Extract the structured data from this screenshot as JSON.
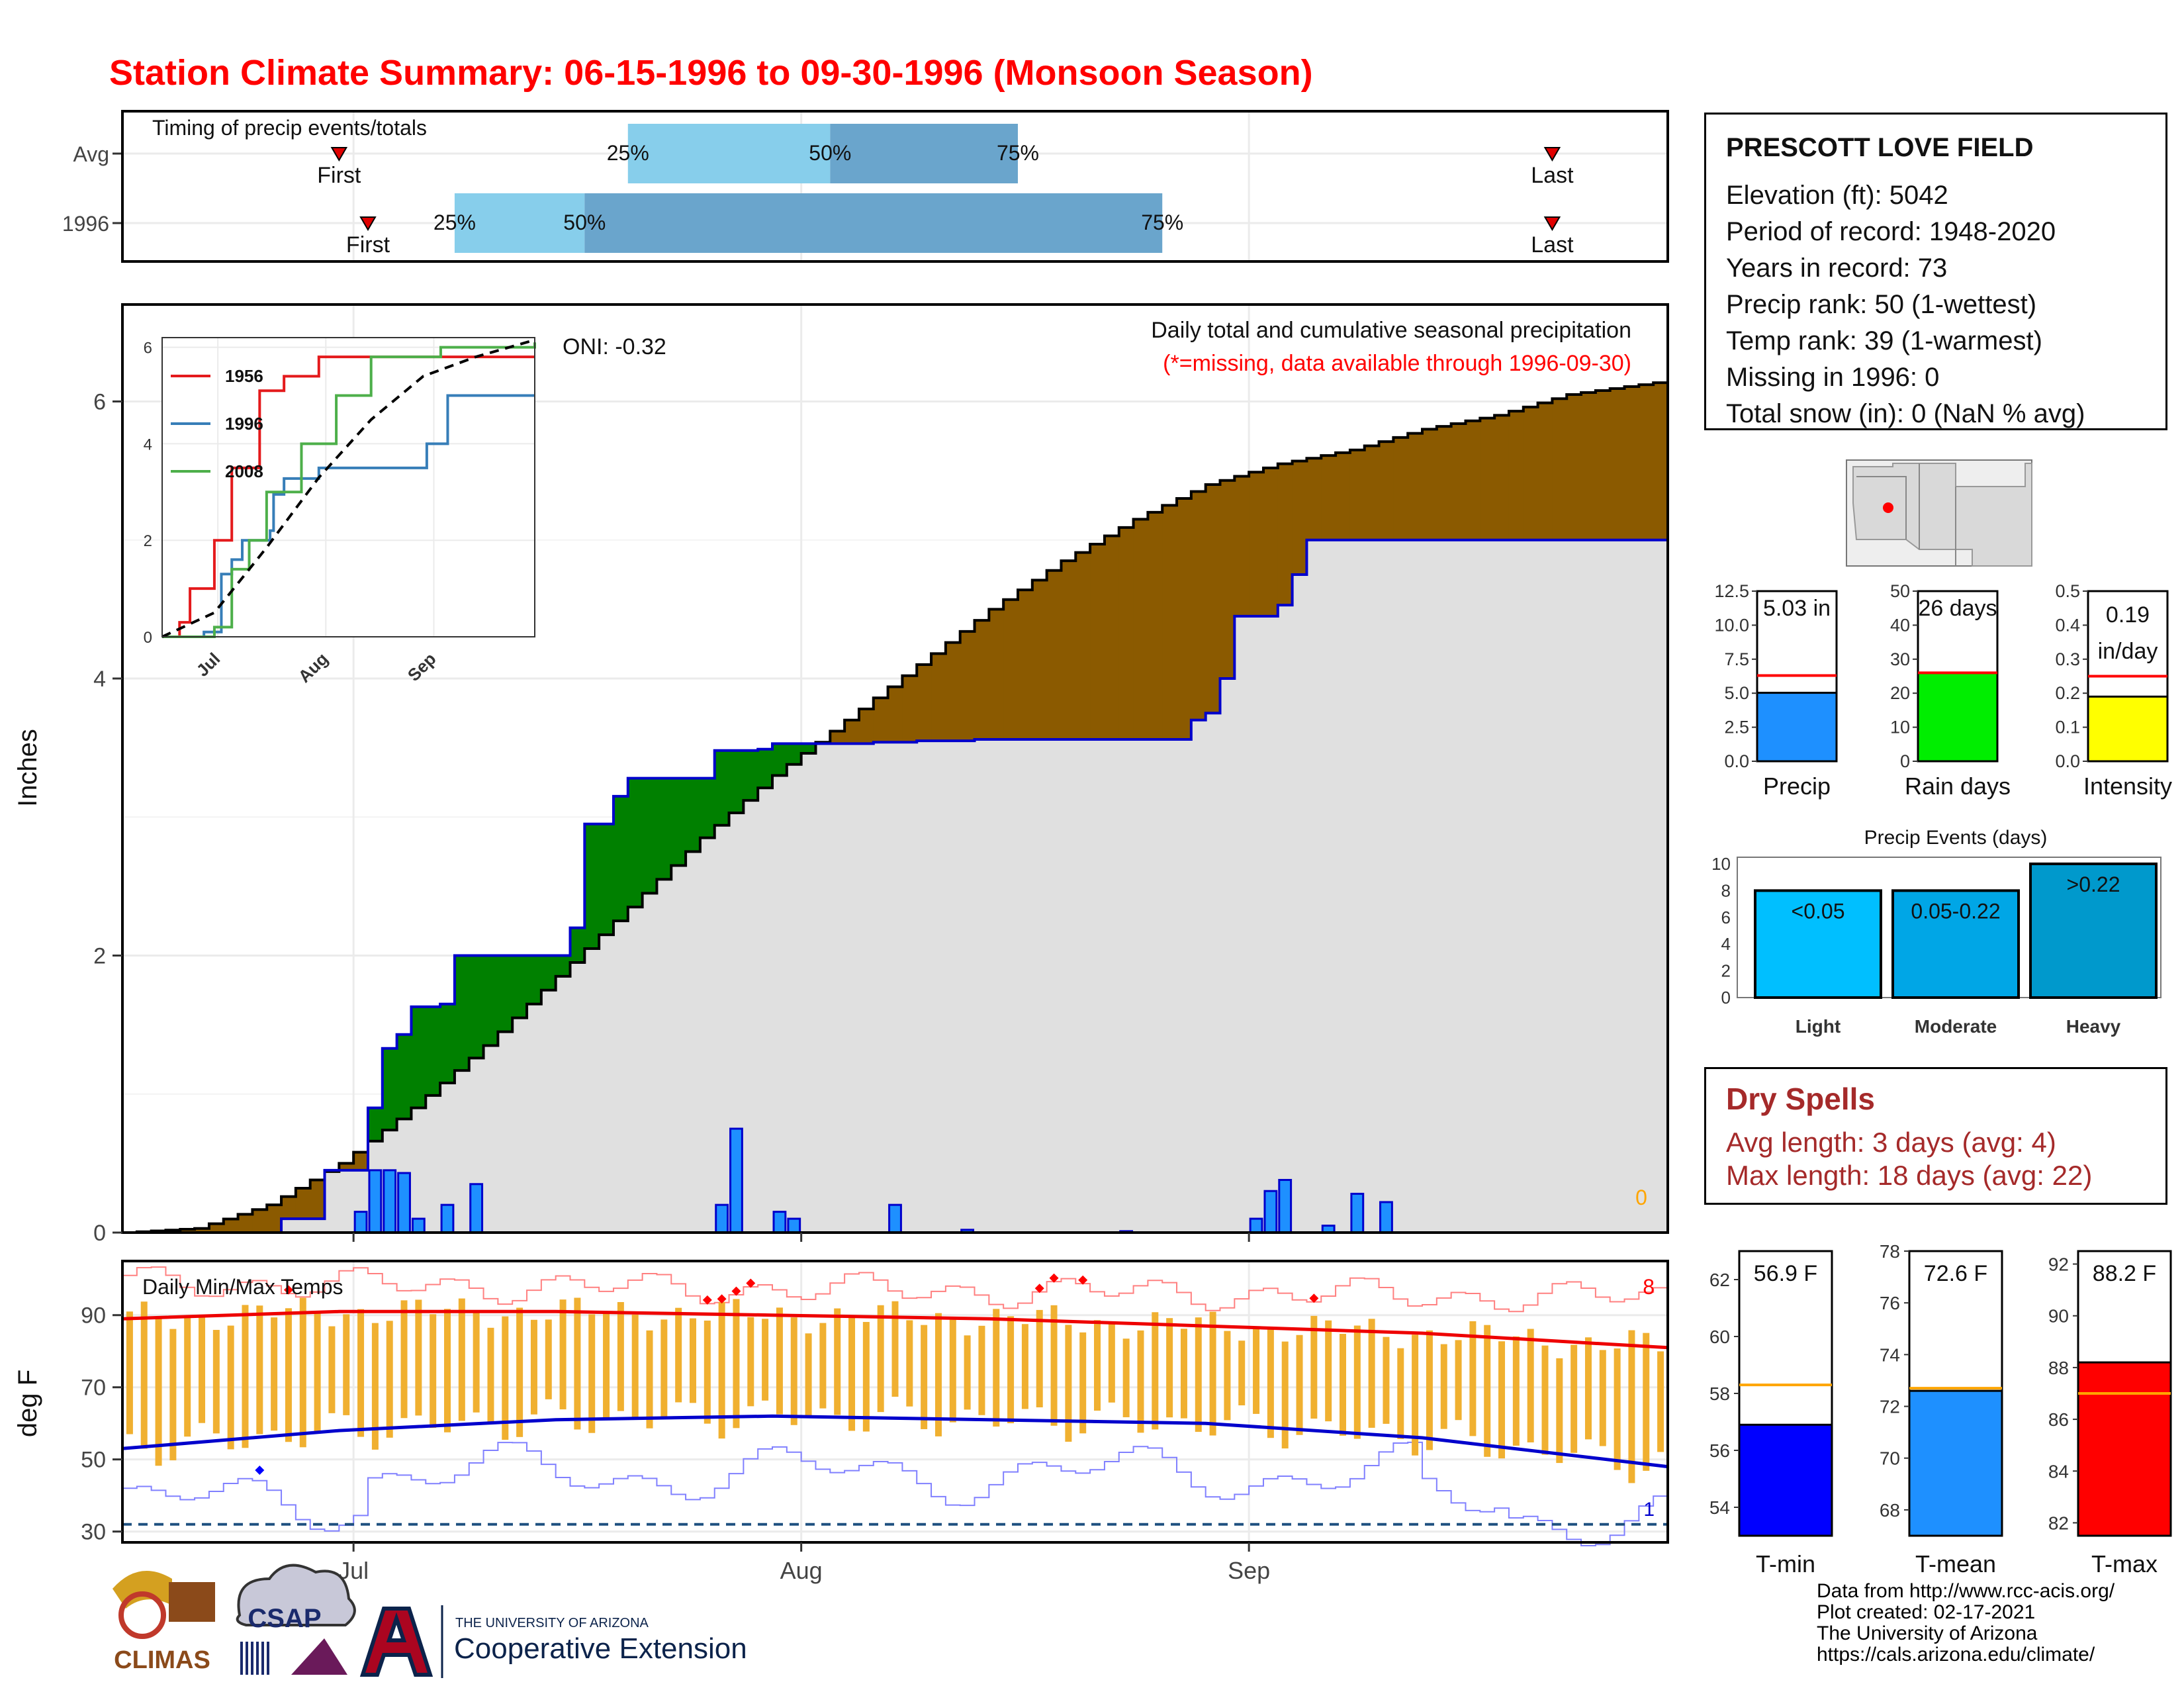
{
  "title": "Station Climate Summary: 06-15-1996 to 09-30-1996 (Monsoon Season)",
  "timing": {
    "label": "Timing of precip events/totals",
    "rows": [
      {
        "name": "Avg",
        "first_label": "First",
        "last_label": "Last",
        "first": "06-30",
        "p25": "07-20",
        "p50": "08-03",
        "p75": "08-16",
        "last": "09-22"
      },
      {
        "name": "1996",
        "first_label": "First",
        "last_label": "Last",
        "first": "07-02",
        "p25": "07-08",
        "p50": "07-17",
        "p75": "08-26",
        "last": "09-22"
      }
    ],
    "pct_labels": [
      "25%",
      "50%",
      "75%"
    ]
  },
  "station": {
    "name": "PRESCOTT LOVE FIELD",
    "lines": [
      "Elevation (ft): 5042",
      "Period of record: 1948-2020",
      "Years in record: 73",
      "Precip rank: 50 (1-wettest)",
      "Temp rank: 39 (1-warmest)",
      "Missing in 1996: 0",
      "Total snow (in): 0 (NaN % avg)"
    ]
  },
  "precip_panel": {
    "ylabel": "Inches",
    "oni": "ONI: -0.32",
    "caption": "Daily total and cumulative seasonal precipitation",
    "missing_note": "(*=missing, data available through 1996-09-30)",
    "missing_count": "0",
    "x_ticks": [
      "Jul",
      "Aug",
      "Sep"
    ],
    "y_ticks": [
      "0",
      "2",
      "4",
      "6"
    ],
    "colors": {
      "above": "#008000",
      "below": "#8b5a00",
      "bars": "#1e90ff",
      "observed": "#0000cc",
      "fill": "#e0e0e0"
    }
  },
  "inset": {
    "legend": [
      {
        "name": "1956",
        "color": "#e41a1c"
      },
      {
        "name": "1996",
        "color": "#377eb8"
      },
      {
        "name": "2008",
        "color": "#4daf4a"
      }
    ],
    "x_ticks": [
      "Jul",
      "Aug",
      "Sep"
    ],
    "y_ticks": [
      "0",
      "2",
      "4",
      "6"
    ]
  },
  "gauges": [
    {
      "label": "Precip",
      "value_text": "5.03 in",
      "value": 5.03,
      "avg": 6.3,
      "max": 12.5,
      "ticks": [
        "0.0",
        "2.5",
        "5.0",
        "7.5",
        "10.0",
        "12.5"
      ],
      "color": "#1e90ff"
    },
    {
      "label": "Rain days",
      "value_text": "26 days",
      "value": 26,
      "avg": 26,
      "max": 50,
      "ticks": [
        "0",
        "10",
        "20",
        "30",
        "40",
        "50"
      ],
      "color": "#00ee00"
    },
    {
      "label": "Intensity",
      "value_text": "0.19",
      "value_text2": "in/day",
      "value": 0.19,
      "avg": 0.25,
      "max": 0.5,
      "ticks": [
        "0.0",
        "0.1",
        "0.2",
        "0.3",
        "0.4",
        "0.5"
      ],
      "color": "#ffff00"
    }
  ],
  "events": {
    "title": "Precip Events (days)",
    "y_ticks": [
      "0",
      "2",
      "4",
      "6",
      "8",
      "10"
    ],
    "bars": [
      {
        "category": "Light",
        "label": "<0.05",
        "value": 8,
        "color": "#00bfff"
      },
      {
        "category": "Moderate",
        "label": "0.05-0.22",
        "value": 8,
        "color": "#00a6e6"
      },
      {
        "category": "Heavy",
        "label": ">0.22",
        "value": 10,
        "color": "#0099cc"
      }
    ]
  },
  "dry_spells": {
    "title": "Dry Spells",
    "avg": "Avg length: 3 days (avg: 4)",
    "max": "Max length: 18 days (avg: 22)"
  },
  "temp_panel": {
    "title": "Daily Min/Max Temps",
    "ylabel": "deg F",
    "y_ticks": [
      "30",
      "50",
      "70",
      "90"
    ],
    "x_ticks": [
      "Jul",
      "Aug",
      "Sep"
    ],
    "record_high_count": "8",
    "record_low_count": "1"
  },
  "temp_gauges": [
    {
      "label": "T-min",
      "value_text": "56.9 F",
      "value": 56.9,
      "avg": 58.3,
      "min": 53,
      "max": 63,
      "ticks": [
        "54",
        "56",
        "58",
        "60",
        "62"
      ],
      "color": "#0000ff"
    },
    {
      "label": "T-mean",
      "value_text": "72.6 F",
      "value": 72.6,
      "avg": 72.7,
      "min": 67,
      "max": 78,
      "ticks": [
        "68",
        "70",
        "72",
        "74",
        "76",
        "78"
      ],
      "color": "#1e90ff"
    },
    {
      "label": "T-max",
      "value_text": "88.2 F",
      "value": 88.2,
      "avg": 87.0,
      "min": 81.5,
      "max": 92.5,
      "ticks": [
        "82",
        "84",
        "86",
        "88",
        "90",
        "92"
      ],
      "color": "#ff0000"
    }
  ],
  "logos": {
    "climas": "CLIMAS",
    "csap": "CSAP",
    "ua_top": "THE UNIVERSITY OF ARIZONA",
    "ua_bottom": "Cooperative Extension"
  },
  "credits": [
    "Data from http://www.rcc-acis.org/",
    "Plot created: 02-17-2021",
    "The University of Arizona",
    "https://cals.arizona.edu/climate/"
  ],
  "chart_data": [
    {
      "type": "area",
      "title": "Daily total and cumulative seasonal precipitation",
      "ylabel": "Inches",
      "ylim": [
        0,
        6.7
      ],
      "x_range": [
        "06-15",
        "09-30"
      ],
      "observed_cumulative": [
        [
          0,
          0
        ],
        [
          10,
          0
        ],
        [
          11,
          0.1
        ],
        [
          13,
          0.1
        ],
        [
          14,
          0.45
        ],
        [
          16,
          0.45
        ],
        [
          17,
          0.9
        ],
        [
          18,
          1.33
        ],
        [
          19,
          1.43
        ],
        [
          20,
          1.63
        ],
        [
          22,
          1.65
        ],
        [
          23,
          2.0
        ],
        [
          30,
          2.0
        ],
        [
          31,
          2.2
        ],
        [
          32,
          2.95
        ],
        [
          34,
          3.15
        ],
        [
          35,
          3.28
        ],
        [
          40,
          3.28
        ],
        [
          41,
          3.48
        ],
        [
          44,
          3.49
        ],
        [
          45,
          3.53
        ],
        [
          50,
          3.53
        ],
        [
          52,
          3.54
        ],
        [
          55,
          3.55
        ],
        [
          59,
          3.56
        ],
        [
          73,
          3.56
        ],
        [
          74,
          3.7
        ],
        [
          75,
          3.75
        ],
        [
          76,
          4.0
        ],
        [
          77,
          4.45
        ],
        [
          80,
          4.53
        ],
        [
          81,
          4.75
        ],
        [
          82,
          5.0
        ],
        [
          107,
          5.0
        ]
      ],
      "average_cumulative": [
        [
          0,
          0
        ],
        [
          5,
          0.03
        ],
        [
          10,
          0.2
        ],
        [
          15,
          0.5
        ],
        [
          20,
          0.9
        ],
        [
          25,
          1.35
        ],
        [
          30,
          1.85
        ],
        [
          35,
          2.35
        ],
        [
          40,
          2.85
        ],
        [
          45,
          3.3
        ],
        [
          50,
          3.7
        ],
        [
          55,
          4.1
        ],
        [
          60,
          4.5
        ],
        [
          65,
          4.85
        ],
        [
          70,
          5.15
        ],
        [
          75,
          5.4
        ],
        [
          80,
          5.55
        ],
        [
          85,
          5.65
        ],
        [
          90,
          5.8
        ],
        [
          95,
          5.9
        ],
        [
          100,
          6.05
        ],
        [
          107,
          6.15
        ]
      ],
      "daily_bars": [
        [
          16,
          0.15
        ],
        [
          17,
          0.45
        ],
        [
          18,
          0.45
        ],
        [
          19,
          0.43
        ],
        [
          20,
          0.1
        ],
        [
          22,
          0.2
        ],
        [
          24,
          0.35
        ],
        [
          41,
          0.2
        ],
        [
          42,
          0.75
        ],
        [
          45,
          0.15
        ],
        [
          46,
          0.1
        ],
        [
          53,
          0.2
        ],
        [
          58,
          0.02
        ],
        [
          69,
          0.01
        ],
        [
          78,
          0.1
        ],
        [
          79,
          0.3
        ],
        [
          80,
          0.38
        ],
        [
          83,
          0.05
        ],
        [
          85,
          0.28
        ],
        [
          87,
          0.22
        ]
      ]
    },
    {
      "type": "line",
      "title": "Inset cumulative precipitation",
      "series": [
        {
          "name": "1956",
          "points": [
            [
              0,
              0
            ],
            [
              5,
              0.3
            ],
            [
              8,
              1.0
            ],
            [
              13,
              1.0
            ],
            [
              15,
              2.0
            ],
            [
              20,
              3.5
            ],
            [
              28,
              5.1
            ],
            [
              35,
              5.4
            ],
            [
              45,
              5.8
            ],
            [
              107,
              5.8
            ]
          ]
        },
        {
          "name": "1996",
          "points": [
            [
              0,
              0
            ],
            [
              12,
              0.1
            ],
            [
              17,
              1.3
            ],
            [
              20,
              1.6
            ],
            [
              23,
              2.0
            ],
            [
              31,
              2.2
            ],
            [
              32,
              2.95
            ],
            [
              35,
              3.28
            ],
            [
              45,
              3.5
            ],
            [
              76,
              4.0
            ],
            [
              82,
              5.0
            ],
            [
              107,
              5.0
            ]
          ]
        },
        {
          "name": "2008",
          "points": [
            [
              0,
              0
            ],
            [
              15,
              0.2
            ],
            [
              20,
              1.4
            ],
            [
              25,
              2.0
            ],
            [
              30,
              3.0
            ],
            [
              40,
              4.0
            ],
            [
              50,
              5.0
            ],
            [
              60,
              5.8
            ],
            [
              80,
              6.0
            ],
            [
              107,
              6.1
            ]
          ]
        },
        {
          "name": "avg",
          "points": [
            [
              0,
              0
            ],
            [
              15,
              0.5
            ],
            [
              30,
              1.85
            ],
            [
              45,
              3.3
            ],
            [
              60,
              4.5
            ],
            [
              75,
              5.4
            ],
            [
              90,
              5.8
            ],
            [
              107,
              6.15
            ]
          ]
        }
      ]
    },
    {
      "type": "line",
      "title": "Daily Min/Max Temps",
      "ylabel": "deg F",
      "ylim": [
        27,
        105
      ],
      "avg_max": [
        [
          0,
          89
        ],
        [
          15,
          91
        ],
        [
          30,
          91
        ],
        [
          45,
          90
        ],
        [
          60,
          89
        ],
        [
          75,
          87
        ],
        [
          90,
          85
        ],
        [
          107,
          81
        ]
      ],
      "avg_min": [
        [
          0,
          53
        ],
        [
          15,
          58
        ],
        [
          30,
          61
        ],
        [
          45,
          62
        ],
        [
          60,
          61
        ],
        [
          75,
          60
        ],
        [
          90,
          56
        ],
        [
          107,
          48
        ]
      ]
    }
  ]
}
